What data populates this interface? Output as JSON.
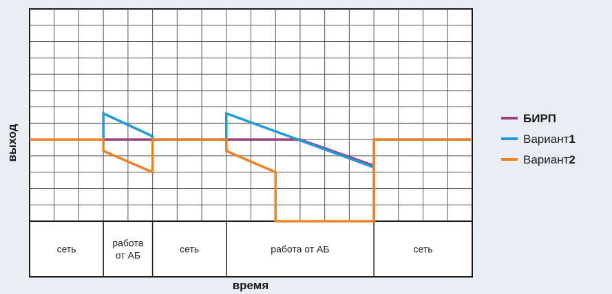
{
  "chart_data": {
    "type": "line",
    "title": "",
    "xlabel": "время",
    "ylabel": "выход",
    "xlim": [
      0,
      18
    ],
    "ylim": [
      -5,
      8
    ],
    "grid": true,
    "legend_position": "right",
    "phases": [
      {
        "label": [
          "сеть"
        ],
        "start": 0,
        "end": 3
      },
      {
        "label": [
          "работа",
          "от АБ"
        ],
        "start": 3,
        "end": 5
      },
      {
        "label": [
          "сеть"
        ],
        "start": 5,
        "end": 8
      },
      {
        "label": [
          "работа  от АБ"
        ],
        "start": 8,
        "end": 14
      },
      {
        "label": [
          "сеть"
        ],
        "start": 14,
        "end": 18
      }
    ],
    "series": [
      {
        "name": "БИРП",
        "name_bold": "БИРП",
        "name_suffix": "",
        "color": "#a0407a",
        "points": [
          [
            3,
            0
          ],
          [
            11,
            0
          ],
          [
            14,
            -1.6
          ]
        ]
      },
      {
        "name": "Вариант1",
        "name_bold": "",
        "name_prefix": "Вариант",
        "name_suffix": "1",
        "color": "#1e9ad6",
        "points": [
          [
            3,
            0
          ],
          [
            3,
            1.6
          ],
          [
            5,
            0.2
          ],
          [
            5,
            0
          ],
          [
            8,
            0
          ],
          [
            8,
            1.6
          ],
          [
            14,
            -1.7
          ],
          [
            14,
            -5
          ],
          [
            14,
            0
          ],
          [
            18,
            0
          ]
        ]
      },
      {
        "name": "Вариант2",
        "name_bold": "",
        "name_prefix": "Вариант",
        "name_suffix": "2",
        "color": "#f08020",
        "points": [
          [
            0,
            0
          ],
          [
            3,
            0
          ],
          [
            3,
            -0.7
          ],
          [
            5,
            -2
          ],
          [
            5,
            0
          ],
          [
            8,
            0
          ],
          [
            8,
            -0.7
          ],
          [
            10,
            -2
          ],
          [
            10,
            -5
          ],
          [
            14,
            -5
          ],
          [
            14,
            0
          ],
          [
            18,
            0
          ]
        ]
      }
    ],
    "legend": [
      {
        "prefix": "",
        "bold": "БИРП",
        "color": "#a0407a"
      },
      {
        "prefix": "Вариант",
        "bold": "1",
        "color": "#1e9ad6"
      },
      {
        "prefix": "Вариант",
        "bold": "2",
        "color": "#f08020"
      }
    ]
  }
}
